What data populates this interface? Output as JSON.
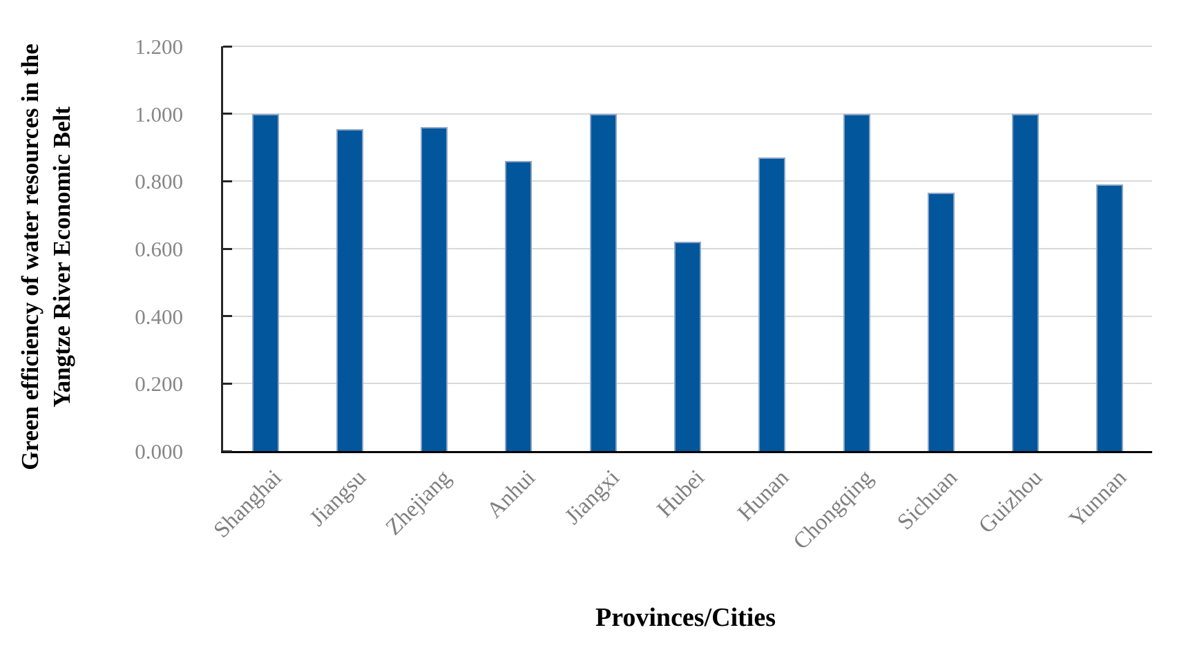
{
  "chart_data": {
    "type": "bar",
    "title": "",
    "categories": [
      "Shanghai",
      "Jiangsu",
      "Zhejiang",
      "Anhui",
      "Jiangxi",
      "Hubei",
      "Hunan",
      "Chongqing",
      "Sichuan",
      "Guizhou",
      "Yunnan"
    ],
    "values": [
      1.0,
      0.955,
      0.96,
      0.86,
      1.0,
      0.62,
      0.87,
      1.0,
      0.765,
      1.0,
      0.79
    ],
    "xlabel": "Provinces/Cities",
    "ylabel_lines": [
      "Green efficiency of water resources in the",
      "Yangtze River Economic Belt"
    ],
    "ylabel": "Green efficiency of water resources in the Yangtze River Economic Belt",
    "ylim": [
      0.0,
      1.2
    ],
    "y_ticks": [
      "0.000",
      "0.200",
      "0.400",
      "0.600",
      "0.800",
      "1.000",
      "1.200"
    ],
    "grid": "horizontal gridlines on",
    "legend": "none",
    "colors": {
      "bar_fill": "#02569b",
      "bar_border": "#8aa5c8",
      "gridline": "#d9d9d9",
      "axis_line": "#262626",
      "baseline": "#000000",
      "tick_label": "#868686",
      "category_label": "#7f7f7f",
      "axis_title": "#000000"
    }
  }
}
